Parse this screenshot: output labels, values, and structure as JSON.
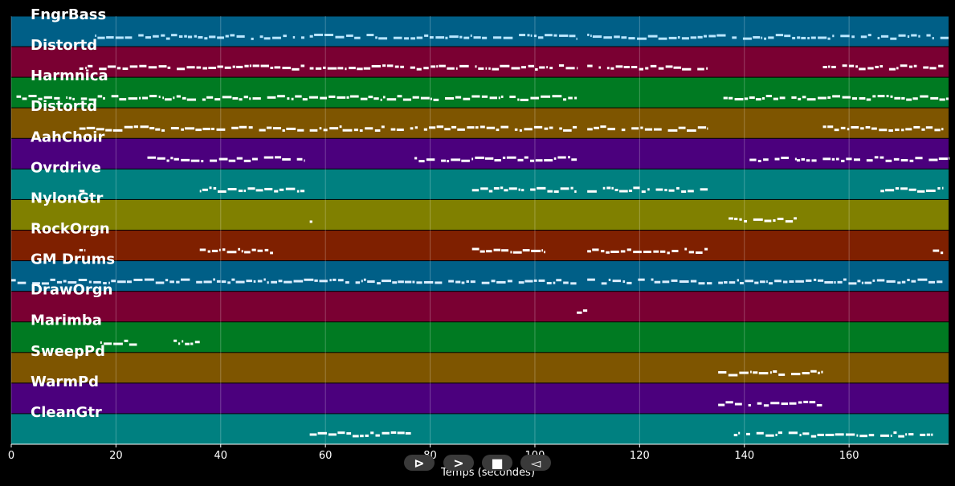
{
  "chart_data": {
    "type": "piano-roll",
    "xlabel": "Temps (secondes)",
    "xlim": [
      0,
      179
    ],
    "xticks": [
      0,
      20,
      40,
      60,
      80,
      100,
      120,
      140,
      160
    ],
    "grid": true,
    "tracks": [
      {
        "name": "FngrBass",
        "color": "#005f87",
        "note_color": "#b9e6ff",
        "segments": [
          [
            16,
            56
          ],
          [
            57,
            108
          ],
          [
            110,
            179
          ]
        ]
      },
      {
        "name": "Distortd",
        "color": "#7a0032",
        "note_color": "#ffffff",
        "segments": [
          [
            13,
            56
          ],
          [
            57,
            108
          ],
          [
            110,
            133
          ],
          [
            155,
            178
          ]
        ]
      },
      {
        "name": "Harmnica",
        "color": "#007a22",
        "note_color": "#ffffff",
        "segments": [
          [
            1,
            108
          ],
          [
            136,
            179
          ]
        ]
      },
      {
        "name": "Distortd",
        "color": "#7e5500",
        "note_color": "#ffffff",
        "segments": [
          [
            13,
            56
          ],
          [
            57,
            108
          ],
          [
            110,
            133
          ],
          [
            155,
            178
          ]
        ]
      },
      {
        "name": "AahChoir",
        "color": "#4b007d",
        "note_color": "#ffffff",
        "segments": [
          [
            26,
            56
          ],
          [
            77,
            108
          ],
          [
            141,
            150
          ],
          [
            150,
            179
          ]
        ]
      },
      {
        "name": "Ovrdrive",
        "color": "#008080",
        "note_color": "#ffffff",
        "segments": [
          [
            13,
            14
          ],
          [
            36,
            56
          ],
          [
            88,
            108
          ],
          [
            110,
            133
          ],
          [
            166,
            178
          ]
        ]
      },
      {
        "name": "NylonGtr",
        "color": "#808000",
        "note_color": "#ffffff",
        "segments": [
          [
            57,
            57.5
          ],
          [
            137,
            150
          ]
        ]
      },
      {
        "name": "RockOrgn",
        "color": "#7f2000",
        "note_color": "#ffffff",
        "segments": [
          [
            13,
            14
          ],
          [
            36,
            50
          ],
          [
            88,
            102
          ],
          [
            110,
            133
          ],
          [
            176,
            178
          ]
        ]
      },
      {
        "name": "GM Drums",
        "color": "#005f87",
        "note_color": "#dceeff",
        "segments": [
          [
            0,
            108
          ],
          [
            110,
            179
          ]
        ]
      },
      {
        "name": "DrawOrgn",
        "color": "#7a0032",
        "note_color": "#ffffff",
        "segments": [
          [
            108,
            110
          ]
        ]
      },
      {
        "name": "Marimba",
        "color": "#007a22",
        "note_color": "#ffffff",
        "segments": [
          [
            17,
            24
          ],
          [
            31,
            36
          ]
        ]
      },
      {
        "name": "SweepPd",
        "color": "#7e5500",
        "note_color": "#ffffff",
        "segments": [
          [
            135,
            155
          ]
        ]
      },
      {
        "name": "WarmPd",
        "color": "#4b007d",
        "note_color": "#ffffff",
        "segments": [
          [
            135,
            155
          ]
        ]
      },
      {
        "name": "CleanGtr",
        "color": "#008080",
        "note_color": "#ffffff",
        "segments": [
          [
            57,
            77
          ],
          [
            138,
            176
          ]
        ]
      }
    ]
  },
  "controls": {
    "play_label": "⊳",
    "next_label": ">",
    "stop_label": "■",
    "prev_label": "◅"
  }
}
